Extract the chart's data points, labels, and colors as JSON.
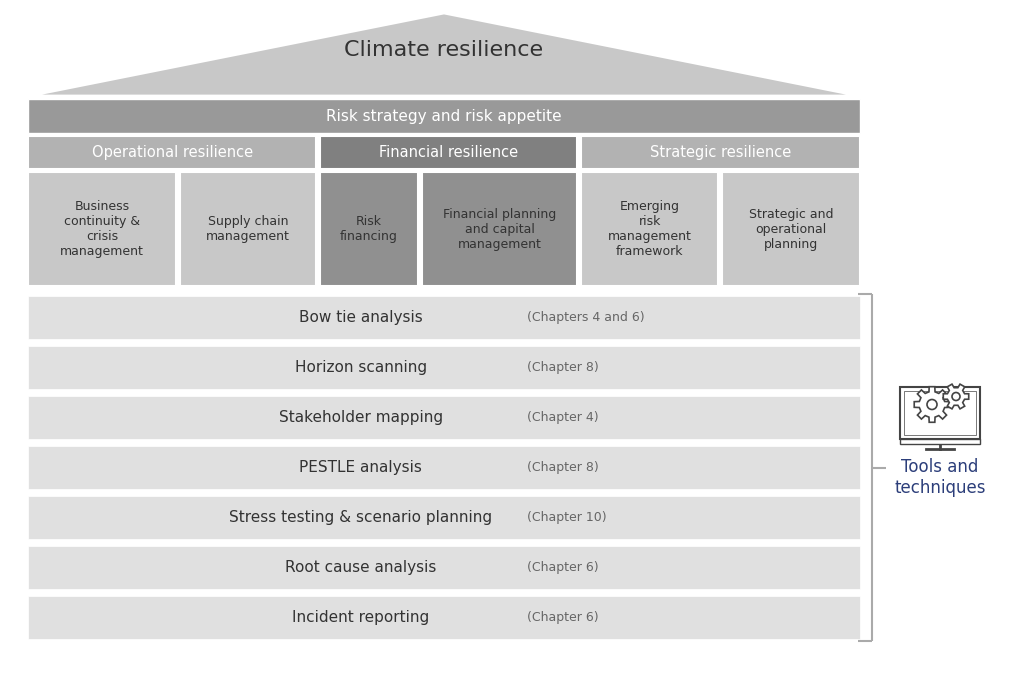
{
  "bg_color": "#ffffff",
  "title": "Climate resilience",
  "title_fontsize": 16,
  "triangle_color": "#c8c8c8",
  "triangle_edge": "#ffffff",
  "row1_label": "Risk strategy and risk appetite",
  "row1_color": "#999999",
  "row1_text_color": "#ffffff",
  "row2_sections": [
    {
      "label": "Operational resilience",
      "color": "#b2b2b2"
    },
    {
      "label": "Financial resilience",
      "color": "#808080"
    },
    {
      "label": "Strategic resilience",
      "color": "#b2b2b2"
    }
  ],
  "row3_cells": [
    {
      "label": "Business\ncontinuity &\ncrisis\nmanagement",
      "color": "#c8c8c8"
    },
    {
      "label": "Supply chain\nmanagement",
      "color": "#c8c8c8"
    },
    {
      "label": "Risk\nfinancing",
      "color": "#909090"
    },
    {
      "label": "Financial planning\nand capital\nmanagement",
      "color": "#909090"
    },
    {
      "label": "Emerging\nrisk\nmanagement\nframework",
      "color": "#c8c8c8"
    },
    {
      "label": "Strategic and\noperational\nplanning",
      "color": "#c8c8c8"
    }
  ],
  "col_widths_raw": [
    1.55,
    1.45,
    1.05,
    1.65,
    1.45,
    1.45
  ],
  "tools_rows": [
    {
      "label": "Bow tie analysis",
      "chapter": "(Chapters 4 and 6)"
    },
    {
      "label": "Horizon scanning",
      "chapter": "(Chapter 8)"
    },
    {
      "label": "Stakeholder mapping",
      "chapter": "(Chapter 4)"
    },
    {
      "label": "PESTLE analysis",
      "chapter": "(Chapter 8)"
    },
    {
      "label": "Stress testing & scenario planning",
      "chapter": "(Chapter 10)"
    },
    {
      "label": "Root cause analysis",
      "chapter": "(Chapter 6)"
    },
    {
      "label": "Incident reporting",
      "chapter": "(Chapter 6)"
    }
  ],
  "tools_row_color": "#e0e0e0",
  "tools_label": "Tools and\ntechniques",
  "tools_label_color": "#2c3e7a",
  "label_fontsize": 11,
  "chapter_fontsize": 9,
  "cell_fontsize": 9,
  "section_fontsize": 10.5,
  "row1_fontsize": 11
}
